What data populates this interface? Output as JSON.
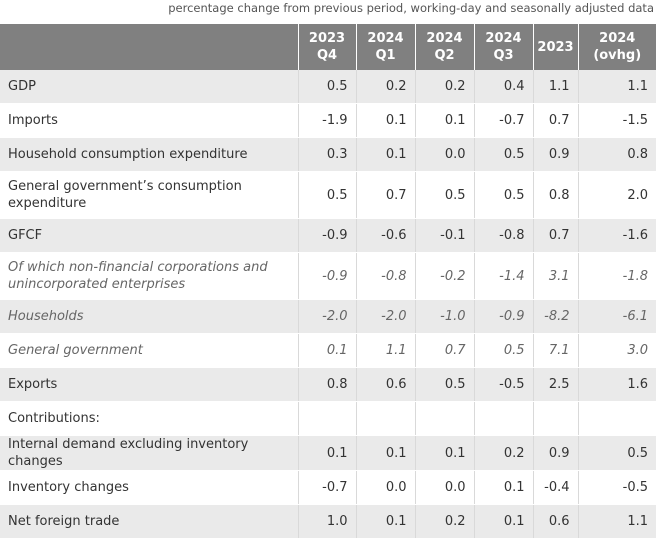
{
  "caption": "percentage change from previous period, working-day and seasonally adjusted data",
  "header": [
    {
      "line1": "",
      "line2": ""
    },
    {
      "line1": "2023",
      "line2": "Q4"
    },
    {
      "line1": "2024",
      "line2": "Q1"
    },
    {
      "line1": "2024",
      "line2": "Q2"
    },
    {
      "line1": "2024",
      "line2": "Q3"
    },
    {
      "line1": "2023",
      "line2": ""
    },
    {
      "line1": "2024",
      "line2": "(ovhg)"
    }
  ],
  "rows": [
    {
      "label": "GDP",
      "values": [
        "0.5",
        "0.2",
        "0.2",
        "0.4",
        "1.1",
        "1.1"
      ]
    },
    {
      "label": "Imports",
      "values": [
        "-1.9",
        "0.1",
        "0.1",
        "-0.7",
        "0.7",
        "-1.5"
      ]
    },
    {
      "label": "Household consumption expenditure",
      "values": [
        "0.3",
        "0.1",
        "0.0",
        "0.5",
        "0.9",
        "0.8"
      ]
    },
    {
      "label": "General government’s consumption expenditure",
      "values": [
        "0.5",
        "0.7",
        "0.5",
        "0.5",
        "0.8",
        "2.0"
      ]
    },
    {
      "label": "GFCF",
      "values": [
        "-0.9",
        "-0.6",
        "-0.1",
        "-0.8",
        "0.7",
        "-1.6"
      ]
    },
    {
      "label": "Of which non-financial corporations and unincorporated enterprises",
      "values": [
        "-0.9",
        "-0.8",
        "-0.2",
        "-1.4",
        "3.1",
        "-1.8"
      ]
    },
    {
      "label": "Households",
      "values": [
        "-2.0",
        "-2.0",
        "-1.0",
        "-0.9",
        "-8.2",
        "-6.1"
      ]
    },
    {
      "label": "General government",
      "values": [
        "0.1",
        "1.1",
        "0.7",
        "0.5",
        "7.1",
        "3.0"
      ]
    },
    {
      "label": "Exports",
      "values": [
        "0.8",
        "0.6",
        "0.5",
        "-0.5",
        "2.5",
        "1.6"
      ]
    },
    {
      "label": "Contributions:",
      "values": [
        "",
        "",
        "",
        "",
        "",
        ""
      ]
    },
    {
      "label": "Internal demand excluding inventory changes",
      "values": [
        "0.1",
        "0.1",
        "0.1",
        "0.2",
        "0.9",
        "0.5"
      ]
    },
    {
      "label": "Inventory changes",
      "values": [
        "-0.7",
        "0.0",
        "0.0",
        "0.1",
        "-0.4",
        "-0.5"
      ]
    },
    {
      "label": "Net foreign trade",
      "values": [
        "1.0",
        "0.1",
        "0.2",
        "0.1",
        "0.6",
        "1.1"
      ]
    }
  ]
}
